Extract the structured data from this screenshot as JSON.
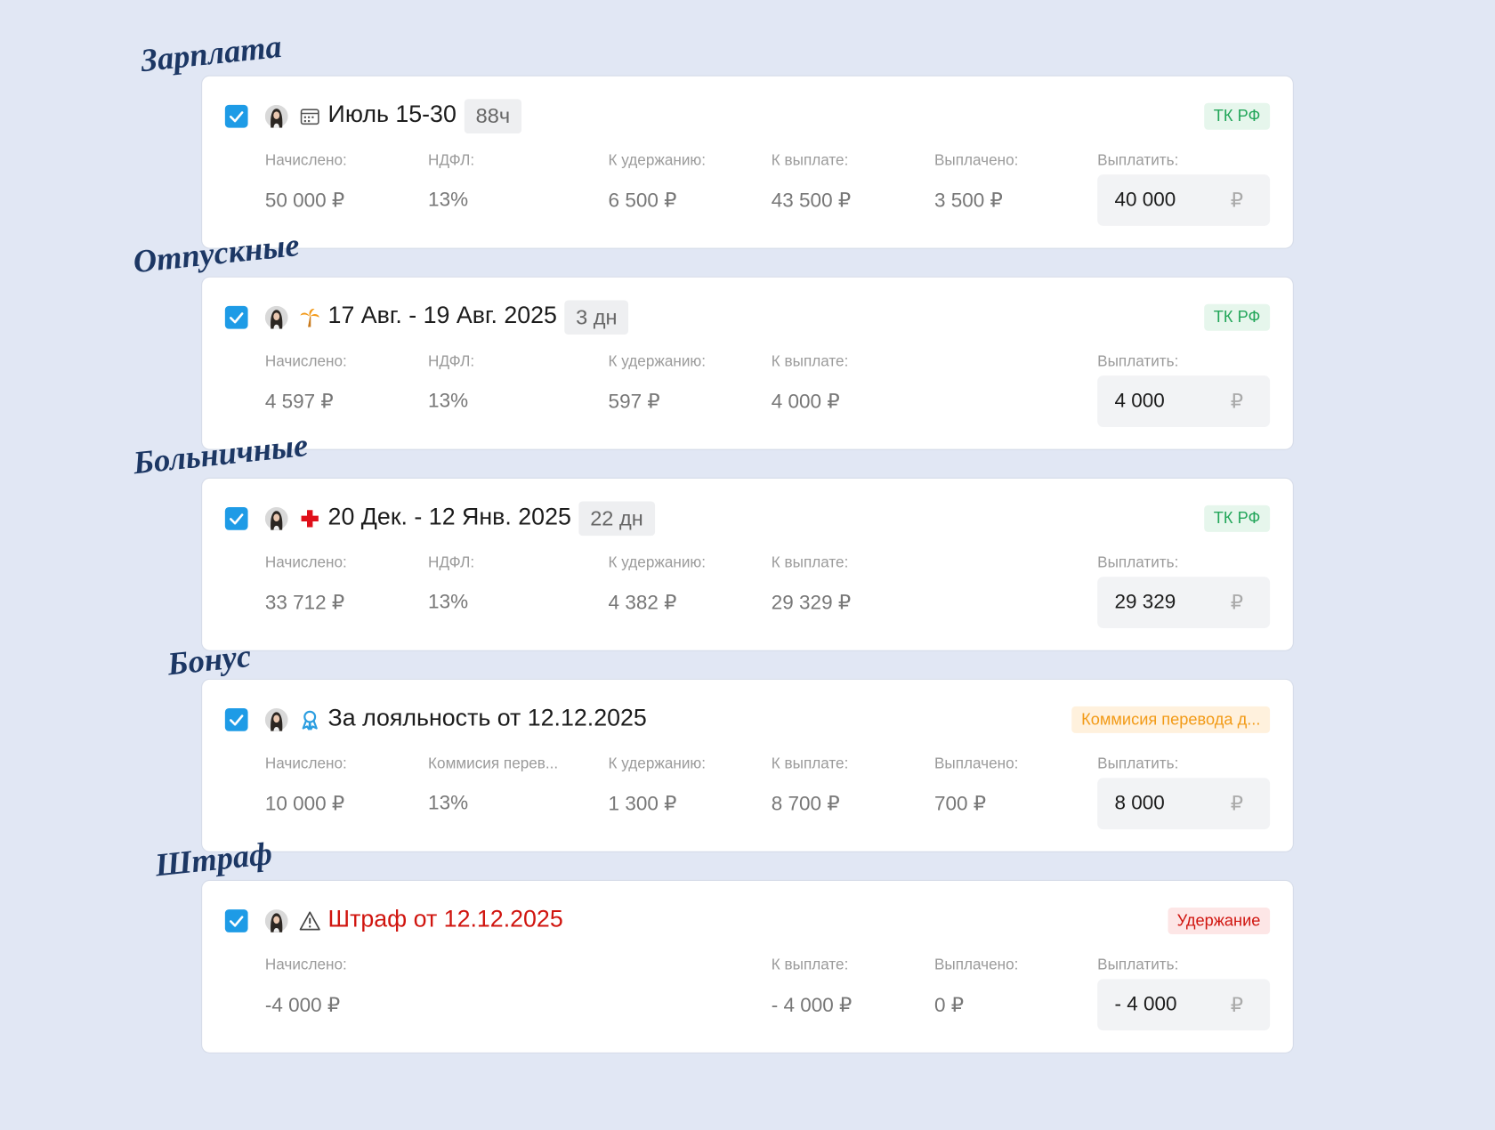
{
  "cards": [
    {
      "label": "Зарплата",
      "title": "Июль 15-30",
      "duration": "88ч",
      "tag": "ТК РФ",
      "tag_kind": "green",
      "title_kind": "normal",
      "fields": {
        "accrued": {
          "label": "Начислено:",
          "value": "50 000 ₽"
        },
        "tax": {
          "label": "НДФЛ:",
          "value": "13%"
        },
        "withhold": {
          "label": "К удержанию:",
          "value": "6 500 ₽"
        },
        "to_pay": {
          "label": "К выплате:",
          "value": "43 500 ₽"
        },
        "paid": {
          "label": "Выплачено:",
          "value": "3 500 ₽"
        }
      },
      "pay": {
        "label": "Выплатить:",
        "amount": "40 000",
        "currency": "₽"
      }
    },
    {
      "label": "Отпускные",
      "title": "17 Авг. - 19 Авг. 2025",
      "duration": "3 дн",
      "tag": "ТК РФ",
      "tag_kind": "green",
      "title_kind": "normal",
      "fields": {
        "accrued": {
          "label": "Начислено:",
          "value": "4 597 ₽"
        },
        "tax": {
          "label": "НДФЛ:",
          "value": "13%"
        },
        "withhold": {
          "label": "К удержанию:",
          "value": "597 ₽"
        },
        "to_pay": {
          "label": "К выплате:",
          "value": "4 000 ₽"
        }
      },
      "pay": {
        "label": "Выплатить:",
        "amount": "4 000",
        "currency": "₽"
      }
    },
    {
      "label": "Больничные",
      "title": "20 Дек. - 12 Янв. 2025",
      "duration": "22 дн",
      "tag": "ТК РФ",
      "tag_kind": "green",
      "title_kind": "normal",
      "fields": {
        "accrued": {
          "label": "Начислено:",
          "value": "33 712 ₽"
        },
        "tax": {
          "label": "НДФЛ:",
          "value": "13%"
        },
        "withhold": {
          "label": "К удержанию:",
          "value": "4 382 ₽"
        },
        "to_pay": {
          "label": "К выплате:",
          "value": "29 329 ₽"
        }
      },
      "pay": {
        "label": "Выплатить:",
        "amount": "29 329",
        "currency": "₽"
      }
    },
    {
      "label": "Бонус",
      "title": "За лояльность от 12.12.2025",
      "tag": "Коммисия перевода д...",
      "tag_kind": "orange",
      "title_kind": "normal",
      "fields": {
        "accrued": {
          "label": "Начислено:",
          "value": "10 000 ₽"
        },
        "tax": {
          "label": "Коммисия перев...",
          "value": "13%"
        },
        "withhold": {
          "label": "К удержанию:",
          "value": "1 300 ₽"
        },
        "to_pay": {
          "label": "К выплате:",
          "value": "8 700 ₽"
        },
        "paid": {
          "label": "Выплачено:",
          "value": "700 ₽"
        }
      },
      "pay": {
        "label": "Выплатить:",
        "amount": "8 000",
        "currency": "₽"
      }
    },
    {
      "label": "Штраф",
      "title": "Штраф от 12.12.2025",
      "tag": "Удержание",
      "tag_kind": "red",
      "title_kind": "danger",
      "fields": {
        "accrued": {
          "label": "Начислено:",
          "value": "-4 000 ₽"
        },
        "to_pay": {
          "label": "К выплате:",
          "value": "- 4 000 ₽"
        },
        "paid": {
          "label": "Выплачено:",
          "value": "0 ₽"
        }
      },
      "pay": {
        "label": "Выплатить:",
        "amount": "- 4 000",
        "currency": "₽"
      }
    }
  ]
}
